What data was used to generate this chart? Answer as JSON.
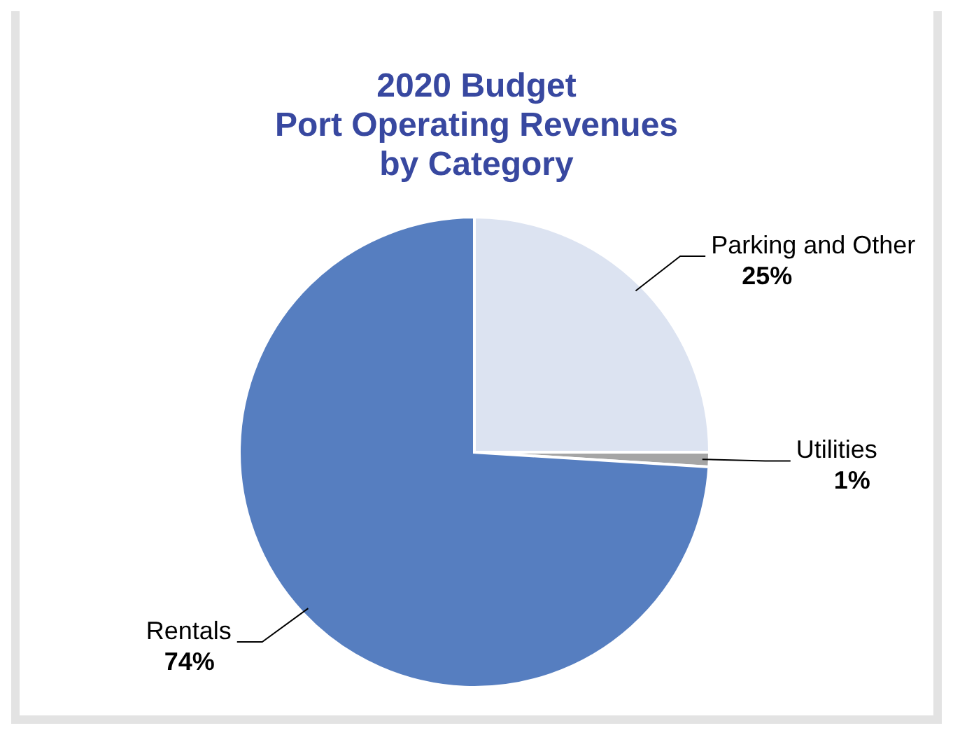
{
  "chart_data": {
    "type": "pie",
    "title": "2020 Budget\nPort Operating Revenues\nby Category",
    "categories": [
      "Parking and Other",
      "Utilities",
      "Rentals"
    ],
    "values": [
      25,
      1,
      74
    ],
    "colors": [
      "#dce3f1",
      "#a5a5a5",
      "#567ec0"
    ],
    "value_labels": [
      "25%",
      "1%",
      "74%"
    ],
    "legend": false
  }
}
